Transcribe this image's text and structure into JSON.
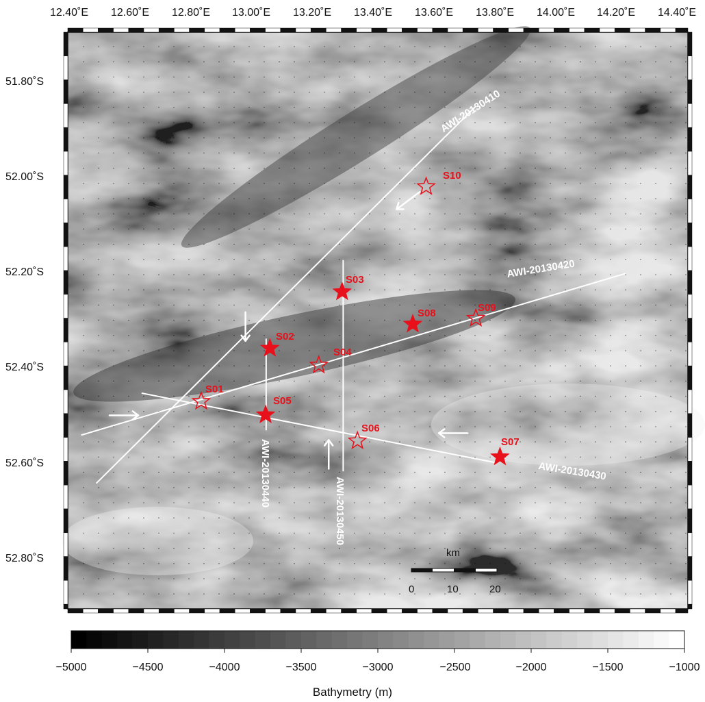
{
  "map": {
    "lon_labels": [
      "12.40˚E",
      "12.60˚E",
      "12.80˚E",
      "13.00˚E",
      "13.20˚E",
      "13.40˚E",
      "13.60˚E",
      "13.80˚E",
      "14.00˚E",
      "14.20˚E",
      "14.40˚E"
    ],
    "lat_labels": [
      "51.80˚S",
      "52.00˚S",
      "52.20˚S",
      "52.40˚S",
      "52.60˚S",
      "52.80˚S"
    ],
    "lon_range": [
      12.3,
      14.61
    ],
    "lat_range": [
      -51.705,
      -52.9
    ],
    "profiles": [
      {
        "id": "AWI-20130410",
        "start": [
          12.406,
          -52.64
        ],
        "end": [
          13.821,
          -51.858
        ]
      },
      {
        "id": "AWI-20130420",
        "start": [
          12.35,
          -52.54
        ],
        "end": [
          14.378,
          -52.205
        ]
      },
      {
        "id": "AWI-20130430",
        "start": [
          12.575,
          -52.453
        ],
        "end": [
          13.894,
          -52.597
        ]
      },
      {
        "id": "AWI-20130440",
        "start": [
          13.039,
          -52.34
        ],
        "end": [
          13.039,
          -52.53
        ]
      },
      {
        "id": "AWI-20130450",
        "start": [
          13.326,
          -52.177
        ],
        "end": [
          13.326,
          -52.615
        ]
      }
    ],
    "stations": [
      {
        "id": "S01",
        "lon": 12.797,
        "lat": -52.47,
        "filled": false
      },
      {
        "id": "S02",
        "lon": 13.053,
        "lat": -52.36,
        "filled": true
      },
      {
        "id": "S03",
        "lon": 13.322,
        "lat": -52.243,
        "filled": true
      },
      {
        "id": "S04",
        "lon": 13.235,
        "lat": -52.395,
        "filled": false
      },
      {
        "id": "S05",
        "lon": 13.037,
        "lat": -52.498,
        "filled": true
      },
      {
        "id": "S06",
        "lon": 13.379,
        "lat": -52.552,
        "filled": false
      },
      {
        "id": "S07",
        "lon": 13.91,
        "lat": -52.585,
        "filled": true
      },
      {
        "id": "S08",
        "lon": 13.585,
        "lat": -52.31,
        "filled": true
      },
      {
        "id": "S09",
        "lon": 13.82,
        "lat": -52.298,
        "filled": false
      },
      {
        "id": "S10",
        "lon": 13.635,
        "lat": -52.025,
        "filled": false
      }
    ],
    "arrows": [
      {
        "lon": 13.568,
        "lat": -52.054,
        "direction": "down-left"
      },
      {
        "lon": 12.962,
        "lat": -52.315,
        "direction": "down"
      },
      {
        "lon": 12.509,
        "lat": -52.499,
        "direction": "right"
      },
      {
        "lon": 13.272,
        "lat": -52.58,
        "direction": "up"
      },
      {
        "lon": 13.736,
        "lat": -52.536,
        "direction": "left"
      }
    ],
    "scale_bar": {
      "unit": "km",
      "ticks": [
        "0",
        "10",
        "20"
      ]
    }
  },
  "colorbar": {
    "title": "Bathymetry (m)",
    "ticks": [
      "−5000",
      "−4500",
      "−4000",
      "−3500",
      "−3000",
      "−2500",
      "−2000",
      "−1500",
      "−1000"
    ],
    "min": -5000,
    "max": -1000,
    "steps": 40
  },
  "colors": {
    "station": "#e8101a",
    "profile": "#ffffff",
    "frame": "#111111"
  }
}
